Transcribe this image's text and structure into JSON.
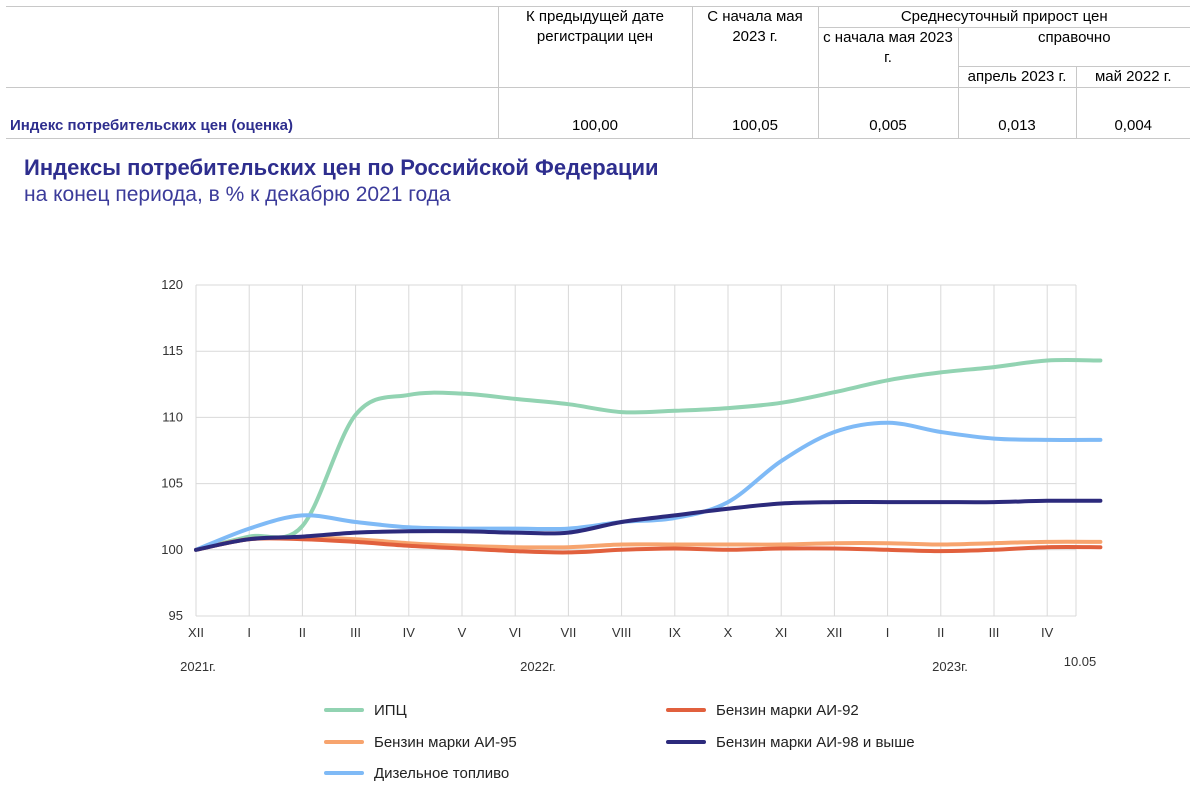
{
  "table": {
    "headers": {
      "prev_date": "К предыдущей дате регистрации цен",
      "since_may": "С начала мая 2023 г.",
      "avg_daily": "Среднесуточный прирост цен",
      "avg_since_may": "с начала мая 2023 г.",
      "reference": "справочно",
      "apr_2023": "апрель 2023 г.",
      "may_2022": "май 2022 г."
    },
    "row": {
      "name": "Индекс потребительских цен (оценка)",
      "prev_date": "100,00",
      "since_may": "100,05",
      "avg_since_may": "0,005",
      "apr_2023": "0,013",
      "may_2022": "0,004"
    }
  },
  "heading": {
    "title": "Индексы потребительских цен по Российской Федерации",
    "subtitle": "на конец периода, в % к декабрю 2021 года"
  },
  "chart_data": {
    "type": "line",
    "ylim": [
      95,
      120
    ],
    "yticks": [
      95,
      100,
      105,
      110,
      115,
      120
    ],
    "categories": [
      "XII",
      "I",
      "II",
      "III",
      "IV",
      "V",
      "VI",
      "VII",
      "VIII",
      "IX",
      "X",
      "XI",
      "XII",
      "I",
      "II",
      "III",
      "IV",
      "10.05"
    ],
    "x_tick_labels": [
      "XII",
      "I",
      "II",
      "III",
      "IV",
      "V",
      "VI",
      "VII",
      "VIII",
      "IX",
      "X",
      "XI",
      "XII",
      "I",
      "II",
      "III",
      "IV"
    ],
    "year_labels": [
      "2021г.",
      "2022г.",
      "2023г."
    ],
    "end_label": "10.05",
    "grid": true,
    "legend_position": "bottom",
    "series": [
      {
        "name": "ИПЦ",
        "color": "#92d3b2",
        "values": [
          100,
          101.0,
          101.8,
          110.2,
          111.7,
          111.8,
          111.4,
          111.0,
          110.4,
          110.5,
          110.7,
          111.1,
          111.9,
          112.8,
          113.4,
          113.8,
          114.3,
          114.3
        ]
      },
      {
        "name": "Бензин марки АИ-92",
        "color": "#e1603d",
        "values": [
          100,
          100.8,
          100.8,
          100.6,
          100.3,
          100.1,
          99.9,
          99.8,
          100.0,
          100.1,
          100.0,
          100.1,
          100.1,
          100.0,
          99.9,
          100.0,
          100.2,
          100.2
        ]
      },
      {
        "name": "Бензин марки АИ-95",
        "color": "#f7a46e",
        "values": [
          100,
          100.8,
          100.9,
          100.8,
          100.5,
          100.3,
          100.2,
          100.2,
          100.4,
          100.4,
          100.4,
          100.4,
          100.5,
          100.5,
          100.4,
          100.5,
          100.6,
          100.6
        ]
      },
      {
        "name": "Бензин марки АИ-98 и выше",
        "color": "#2c2a7c",
        "values": [
          100,
          100.8,
          101.0,
          101.3,
          101.4,
          101.4,
          101.3,
          101.3,
          102.1,
          102.6,
          103.1,
          103.5,
          103.6,
          103.6,
          103.6,
          103.6,
          103.7,
          103.7
        ]
      },
      {
        "name": "Дизельное топливо",
        "color": "#7fbaf6",
        "values": [
          100,
          101.6,
          102.6,
          102.1,
          101.7,
          101.6,
          101.6,
          101.6,
          102.1,
          102.4,
          103.6,
          106.7,
          108.9,
          109.6,
          108.9,
          108.4,
          108.3,
          108.3
        ]
      }
    ]
  }
}
